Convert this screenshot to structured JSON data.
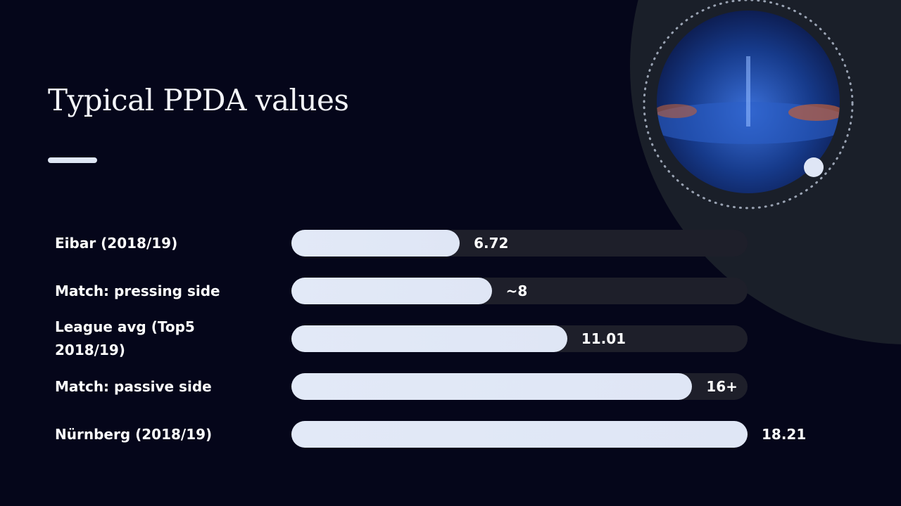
{
  "chart_data": {
    "type": "bar",
    "orientation": "horizontal",
    "title": "Typical PPDA values",
    "categories": [
      "Eibar (2018/19)",
      "Match: pressing side",
      "League avg (Top5 2018/19)",
      "Match: passive side",
      "Nürnberg (2018/19)"
    ],
    "values": [
      6.72,
      8,
      11.01,
      16,
      18.21
    ],
    "value_labels": [
      "6.72",
      "~8",
      "11.01",
      "16+",
      "18.21"
    ],
    "xlim": [
      0,
      18.21
    ],
    "color": "#e2e9f7"
  }
}
